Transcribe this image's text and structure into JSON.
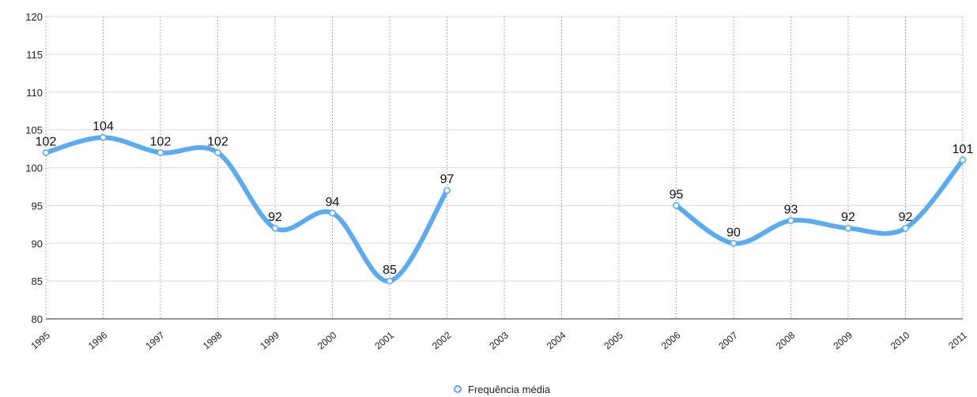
{
  "chart_data": {
    "type": "line",
    "title": "",
    "xlabel": "",
    "ylabel": "",
    "categories": [
      "1995",
      "1996",
      "1997",
      "1998",
      "1999",
      "2000",
      "2001",
      "2002",
      "2003",
      "2004",
      "2005",
      "2006",
      "2007",
      "2008",
      "2009",
      "2010",
      "2011"
    ],
    "series": [
      {
        "name": "Frequência média",
        "values": [
          102,
          104,
          102,
          102,
          92,
          94,
          85,
          97,
          null,
          null,
          null,
          95,
          90,
          93,
          92,
          92,
          101
        ],
        "color": "#5aabf2"
      }
    ],
    "ylim": [
      80,
      120
    ],
    "yticks": [
      80,
      85,
      90,
      95,
      100,
      105,
      110,
      115,
      120
    ],
    "grid": true,
    "legend_position": "bottom-center",
    "data_labels": true
  }
}
